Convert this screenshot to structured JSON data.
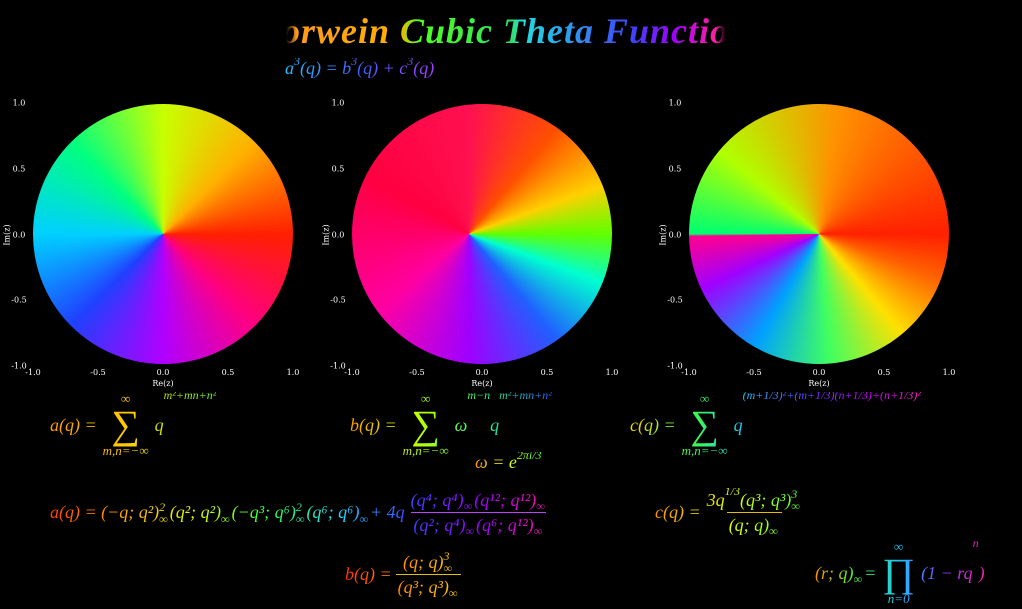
{
  "title": "Borwein Cubic Theta Functions",
  "identity": [
    "a",
    "3",
    "(q) = b",
    "3",
    "(q) + c",
    "3",
    "(q)"
  ],
  "sym": {
    "inf": "∞",
    "sum": "∑",
    "prod": "∏"
  },
  "plots": [
    {
      "xlabel": "Re(z)",
      "ylabel": "Im(z)",
      "xticks": [
        {
          "value": -1,
          "label": "-1.0"
        },
        -0.5,
        {
          "value": 0,
          "label": "0.0"
        },
        0.5,
        {
          "value": 1,
          "label": "1.0"
        }
      ],
      "yticks": [
        {
          "value": -1,
          "label": "-1.0"
        },
        -0.5,
        {
          "value": 0,
          "label": "0.0"
        },
        0.5,
        {
          "value": 1,
          "label": "1.0"
        }
      ]
    },
    {
      "xlabel": "Re(z)",
      "ylabel": "Im(z)",
      "xticks": [
        {
          "value": -1,
          "label": "-1.0"
        },
        -0.5,
        {
          "value": 0,
          "label": "0.0"
        },
        0.5,
        {
          "value": 1,
          "label": "1.0"
        }
      ],
      "yticks": [
        {
          "value": -1,
          "label": "-1.0"
        },
        -0.5,
        {
          "value": 0,
          "label": "0.0"
        },
        0.5,
        {
          "value": 1,
          "label": "1.0"
        }
      ]
    },
    {
      "xlabel": "Re(z)",
      "ylabel": "Im(z)",
      "xticks": [
        {
          "value": -1,
          "label": "-1.0"
        },
        -0.5,
        {
          "value": 0,
          "label": "0.0"
        },
        0.5,
        {
          "value": 1,
          "label": "1.0"
        }
      ],
      "yticks": [
        {
          "value": -1,
          "label": "-1.0"
        },
        -0.5,
        {
          "value": 0,
          "label": "0.0"
        },
        0.5,
        {
          "value": 1,
          "label": "1.0"
        }
      ]
    }
  ],
  "sum_a": [
    "a(q) =",
    "m,n=−∞",
    "q",
    "m²+mn+n²"
  ],
  "sum_b": [
    "b(q) =",
    "m,n=−∞",
    "ω",
    "m−n",
    "q",
    "m²+mn+n²"
  ],
  "omega": [
    "ω = e",
    "2πi/3"
  ],
  "sum_c": [
    "c(q) =",
    "m,n=−∞",
    "q",
    "(m+1/3)²+(m+1/3)(n+1/3)+(n+1/3)²"
  ],
  "prod_a": [
    "a(q) = (−q; q²)",
    "2",
    "(q²; q²)",
    "(−q³; q⁶)",
    "2",
    "(q⁶; q⁶)",
    "+ 4q",
    "(q⁴; q⁴)",
    "(q¹²; q¹²)",
    "(q²; q⁴)",
    "(q⁶; q¹²)"
  ],
  "prod_c": [
    "c(q) =",
    "3q",
    "1/3",
    "(q³; q³)",
    "3",
    "(q; q)"
  ],
  "prod_b": [
    "b(q) =",
    "(q; q)",
    "3",
    "(q³; q³)"
  ],
  "pochhammer": [
    "(r; q)",
    "=",
    "n=0",
    "(1 − rq",
    "n",
    ")"
  ]
}
